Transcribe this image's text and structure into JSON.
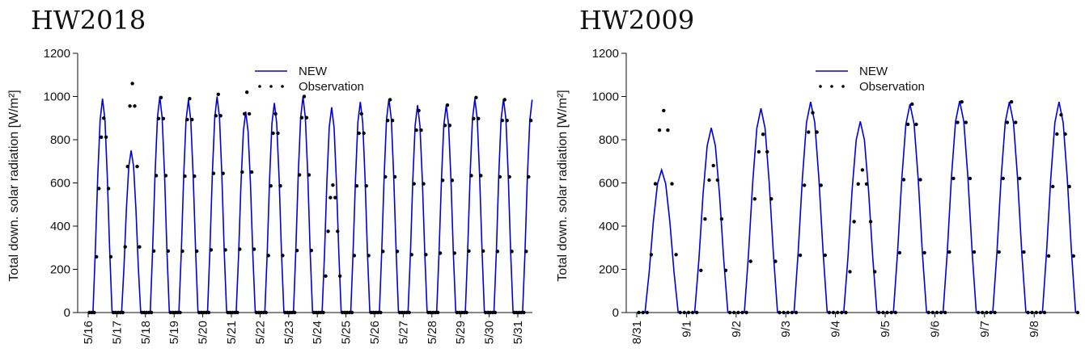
{
  "chart_data": [
    {
      "type": "line",
      "title": "HW2018",
      "ylabel": "Total down. solar radiation [W/m²]",
      "ylim": [
        0,
        1200
      ],
      "yticks": [
        0,
        200,
        400,
        600,
        800,
        1000,
        1200
      ],
      "x_tick_labels": [
        "5/16",
        "5/17",
        "5/18",
        "5/19",
        "5/20",
        "5/21",
        "5/22",
        "5/23",
        "5/24",
        "5/25",
        "5/26",
        "5/27",
        "5/28",
        "5/29",
        "5/30",
        "5/31"
      ],
      "legend_position": "top-center",
      "series": [
        {
          "name": "NEW",
          "style": "line",
          "color": "#0000dd",
          "day_peaks": [
            990,
            750,
            1000,
            985,
            1000,
            930,
            970,
            1000,
            950,
            975,
            990,
            960,
            960,
            990,
            990,
            985
          ],
          "values": []
        },
        {
          "name": "Observation",
          "style": "points",
          "color": "#000000",
          "day_peaks": [
            900,
            1060,
            995,
            990,
            1010,
            1020,
            920,
            1000,
            590,
            920,
            985,
            935,
            960,
            995,
            985,
            985
          ],
          "values": []
        }
      ]
    },
    {
      "type": "line",
      "title": "HW2009",
      "ylabel": "Total down. solar radiation [W/m²]",
      "ylim": [
        0,
        1200
      ],
      "yticks": [
        0,
        200,
        400,
        600,
        800,
        1000,
        1200
      ],
      "x_tick_labels": [
        "8/31",
        "9/1",
        "9/2",
        "9/3",
        "9/4",
        "9/5",
        "9/6",
        "9/7",
        "9/8"
      ],
      "legend_position": "top-center",
      "series": [
        {
          "name": "NEW",
          "style": "line",
          "color": "#0000dd",
          "day_peaks": [
            660,
            855,
            945,
            975,
            885,
            965,
            980,
            975,
            975
          ],
          "values": []
        },
        {
          "name": "Observation",
          "style": "points",
          "color": "#000000",
          "day_peaks": [
            935,
            680,
            825,
            925,
            660,
            965,
            975,
            975,
            915
          ],
          "values": []
        }
      ]
    }
  ]
}
